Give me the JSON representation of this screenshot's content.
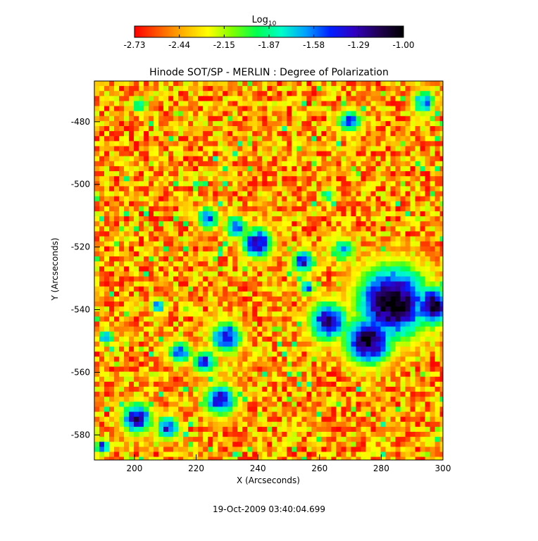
{
  "chart_data": {
    "type": "heatmap",
    "title": "Hinode SOT/SP - MERLIN : Degree of Polarization",
    "xlabel": "X (Arcseconds)",
    "ylabel": "Y (Arcseconds)",
    "xlim": [
      187,
      300
    ],
    "ylim": [
      -588,
      -467
    ],
    "x_ticks": [
      "200",
      "220",
      "240",
      "260",
      "280",
      "300"
    ],
    "y_ticks": [
      "-480",
      "-500",
      "-520",
      "-540",
      "-560",
      "-580"
    ],
    "x_tick_values": [
      200,
      220,
      240,
      260,
      280,
      300
    ],
    "y_tick_values": [
      -480,
      -500,
      -520,
      -540,
      -560,
      -580
    ],
    "colorbar": {
      "label_base": "Log",
      "label_sub": "10",
      "ticks": [
        "-2.73",
        "-2.44",
        "-2.15",
        "-1.87",
        "-1.58",
        "-1.29",
        "-1.00"
      ],
      "range": [
        -2.73,
        -1.0
      ],
      "colormap": [
        "#ff0000",
        "#ff5a00",
        "#ffb400",
        "#ffff00",
        "#7fff00",
        "#00ff50",
        "#00ffc8",
        "#00a0ff",
        "#0020ff",
        "#3000c0",
        "#200050",
        "#000000"
      ]
    },
    "features": [
      {
        "x": 283,
        "y": -537,
        "spread": 9,
        "peak": -1.05
      },
      {
        "x": 275,
        "y": -549,
        "spread": 6,
        "peak": -1.1
      },
      {
        "x": 262,
        "y": -543,
        "spread": 5,
        "peak": -1.35
      },
      {
        "x": 296,
        "y": -538,
        "spread": 5,
        "peak": -1.2
      },
      {
        "x": 239,
        "y": -518,
        "spread": 4,
        "peak": -1.35
      },
      {
        "x": 232,
        "y": -513,
        "spread": 3,
        "peak": -1.55
      },
      {
        "x": 223,
        "y": -510,
        "spread": 3,
        "peak": -1.6
      },
      {
        "x": 254,
        "y": -524,
        "spread": 3,
        "peak": -1.45
      },
      {
        "x": 255,
        "y": -532,
        "spread": 2,
        "peak": -1.5
      },
      {
        "x": 229,
        "y": -548,
        "spread": 4,
        "peak": -1.4
      },
      {
        "x": 227,
        "y": -568,
        "spread": 4,
        "peak": -1.35
      },
      {
        "x": 222,
        "y": -556,
        "spread": 3,
        "peak": -1.5
      },
      {
        "x": 214,
        "y": -553,
        "spread": 3,
        "peak": -1.6
      },
      {
        "x": 200,
        "y": -574,
        "spread": 4,
        "peak": -1.35
      },
      {
        "x": 210,
        "y": -577,
        "spread": 3,
        "peak": -1.45
      },
      {
        "x": 207,
        "y": -538,
        "spread": 2,
        "peak": -1.6
      },
      {
        "x": 269,
        "y": -479,
        "spread": 3,
        "peak": -1.5
      },
      {
        "x": 201,
        "y": -474,
        "spread": 2,
        "peak": -1.7
      },
      {
        "x": 293,
        "y": -473,
        "spread": 3,
        "peak": -1.6
      },
      {
        "x": 190,
        "y": -548,
        "spread": 2,
        "peak": -1.6
      },
      {
        "x": 189,
        "y": -583,
        "spread": 2,
        "peak": -1.5
      },
      {
        "x": 262,
        "y": -503,
        "spread": 2,
        "peak": -1.8
      },
      {
        "x": 267,
        "y": -520,
        "spread": 3,
        "peak": -1.7
      }
    ]
  },
  "footer": {
    "timestamp": "19-Oct-2009 03:40:04.699"
  }
}
